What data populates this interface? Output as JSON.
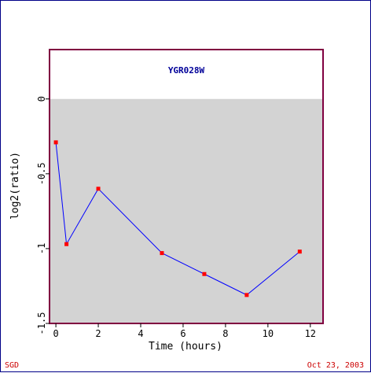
{
  "footer": {
    "left_text": "SGD",
    "right_text": "Oct 23, 2003"
  },
  "colors": {
    "frame_border": "#000088",
    "plot_border": "#800040",
    "negative_region": "#d3d3d3",
    "line": "#0000ff",
    "marker": "#ff0000",
    "title": "#000099",
    "footer_text": "#cc0000"
  },
  "chart_data": {
    "type": "line",
    "title": "YGR028W",
    "xlabel": "Time (hours)",
    "ylabel": "log2(ratio)",
    "xlim": [
      -0.3,
      12.6
    ],
    "ylim": [
      -1.5,
      0.33
    ],
    "x_ticks": [
      0,
      2,
      4,
      6,
      8,
      10,
      12
    ],
    "y_ticks": [
      0,
      -0.5,
      -1,
      -1.5
    ],
    "grid": false,
    "series": [
      {
        "x": [
          0,
          0.5,
          2,
          5,
          7,
          9,
          11.5
        ],
        "y": [
          -0.29,
          -0.97,
          -0.6,
          -1.03,
          -1.17,
          -1.31,
          -1.02
        ]
      }
    ]
  }
}
